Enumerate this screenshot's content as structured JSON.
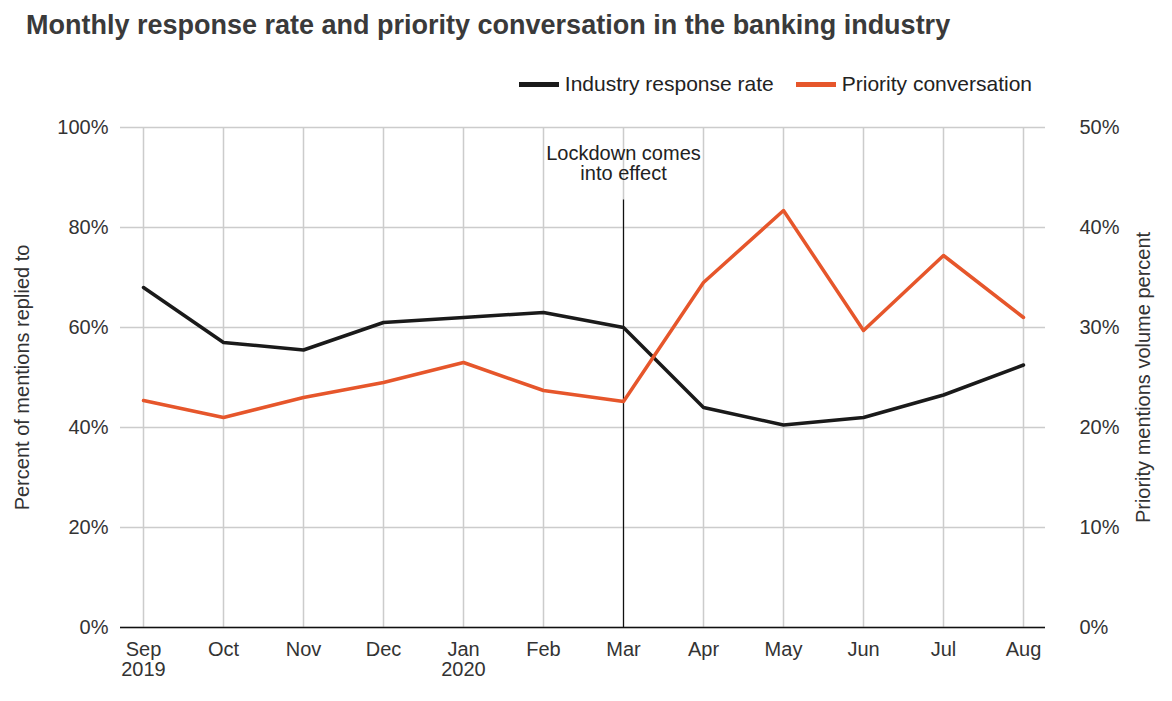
{
  "chart_data": {
    "type": "line",
    "title": "Monthly response rate and priority conversation in the banking industry",
    "categories": [
      "Sep 2019",
      "Oct",
      "Nov",
      "Dec",
      "Jan 2020",
      "Feb",
      "Mar",
      "Apr",
      "May",
      "Jun",
      "Jul",
      "Aug"
    ],
    "y_label": "Percent of mentions replied to",
    "y2_label": "Priority mentions volume percent",
    "ylim": [
      0,
      100
    ],
    "yticks": [
      {
        "value": 0,
        "label": "0%"
      },
      {
        "value": 20,
        "label": "20%"
      },
      {
        "value": 40,
        "label": "40%"
      },
      {
        "value": 60,
        "label": "60%"
      },
      {
        "value": 80,
        "label": "80%"
      },
      {
        "value": 100,
        "label": "100%"
      }
    ],
    "y2lim": [
      0,
      50
    ],
    "y2ticks": [
      {
        "value": 0,
        "label": "0%"
      },
      {
        "value": 10,
        "label": "10%"
      },
      {
        "value": 20,
        "label": "20%"
      },
      {
        "value": 30,
        "label": "30%"
      },
      {
        "value": 40,
        "label": "40%"
      },
      {
        "value": 50,
        "label": "50%"
      }
    ],
    "grid": true,
    "legend": "top-right",
    "series": [
      {
        "name": "Industry response rate",
        "color": "#1a1a1a",
        "axis": "y",
        "values": [
          68,
          57,
          55.5,
          61,
          62,
          63,
          60,
          44,
          40.5,
          42,
          46.5,
          52.5
        ]
      },
      {
        "name": "Priority conversation",
        "color": "#e6562b",
        "axis": "y2",
        "values": [
          22.7,
          21,
          23,
          24.5,
          26.5,
          23.7,
          22.6,
          34.5,
          41.7,
          29.7,
          37.2,
          31
        ]
      }
    ],
    "annotations": [
      {
        "x": "Mar",
        "text": "Lockdown comes\ninto effect"
      }
    ]
  }
}
